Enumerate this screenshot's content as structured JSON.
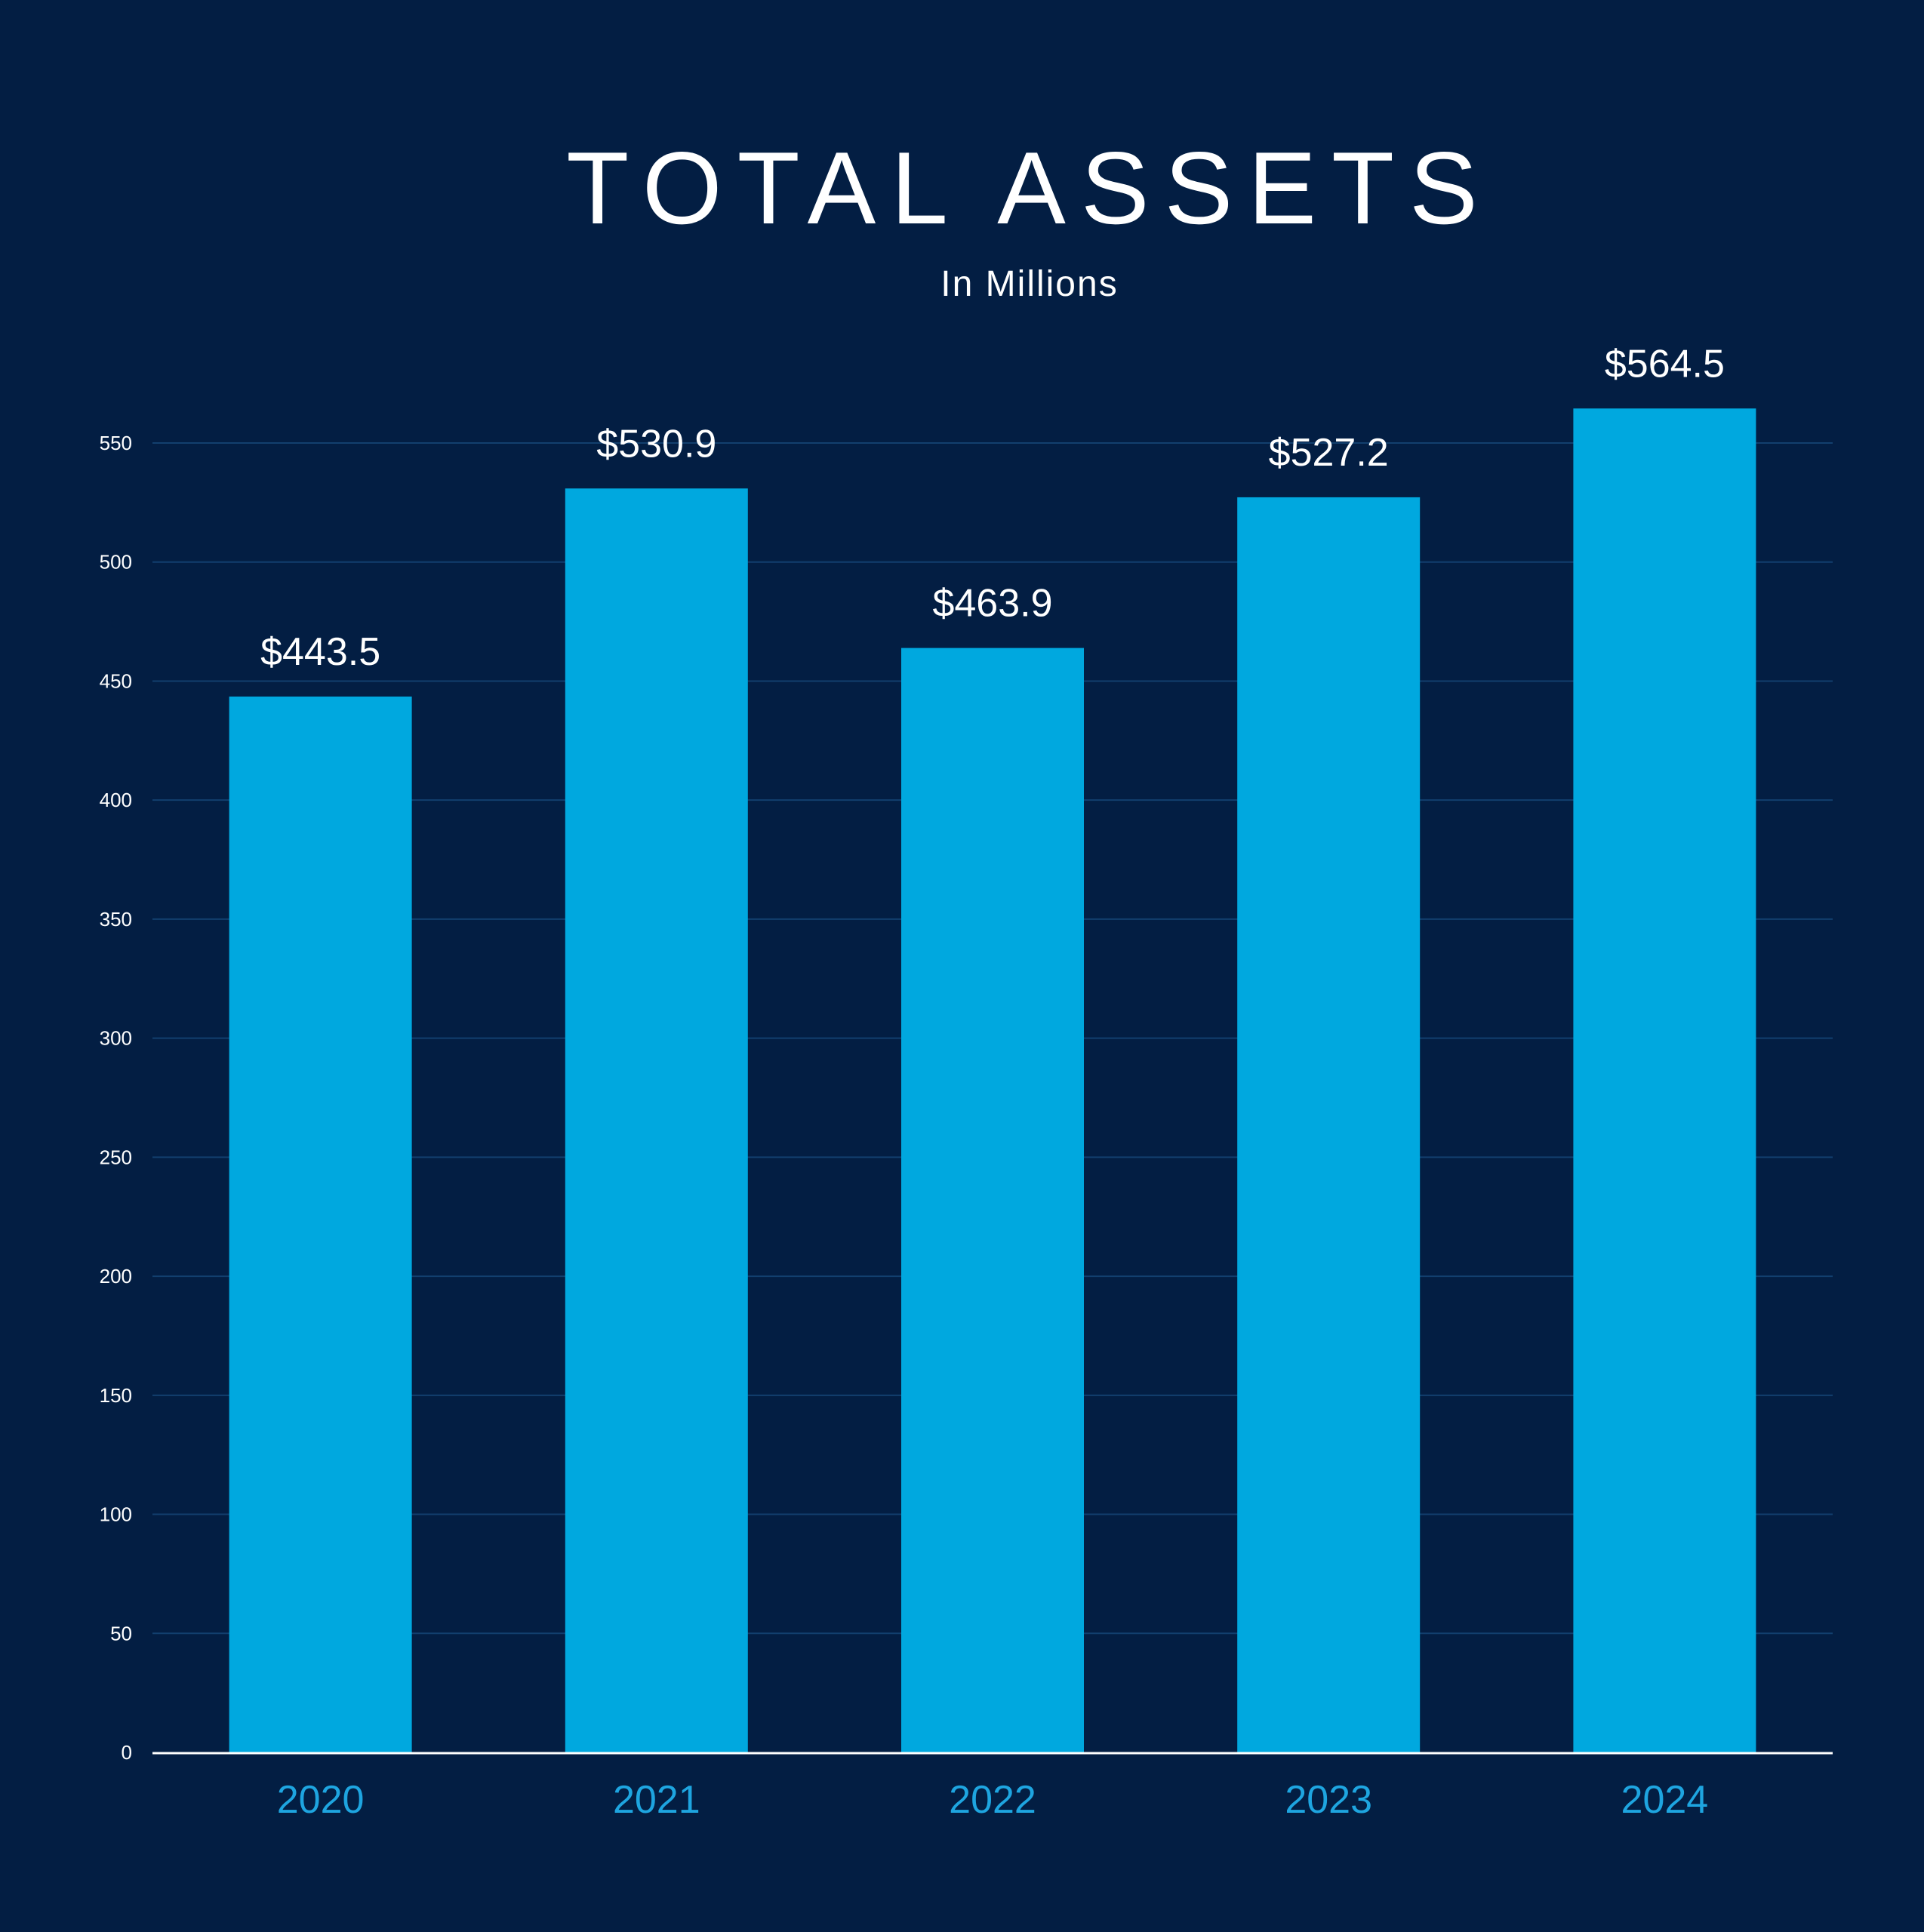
{
  "colors": {
    "background": "#031e43",
    "bar": "#00a8df",
    "grid": "#123f6e",
    "category_label": "#1ea5e0",
    "text": "#ffffff"
  },
  "chart_data": {
    "type": "bar",
    "title": "TOTAL ASSETS",
    "subtitle": "In Millions",
    "xlabel": "",
    "ylabel": "",
    "categories": [
      "2020",
      "2021",
      "2022",
      "2023",
      "2024"
    ],
    "values": [
      443.5,
      530.9,
      463.9,
      527.2,
      564.5
    ],
    "data_labels": [
      "$443.5",
      "$530.9",
      "$463.9",
      "$527.2",
      "$564.5"
    ],
    "ylim": [
      0,
      550
    ],
    "yticks": [
      0,
      50,
      100,
      150,
      200,
      250,
      300,
      350,
      400,
      450,
      500,
      550
    ],
    "grid": true,
    "legend": "none"
  }
}
